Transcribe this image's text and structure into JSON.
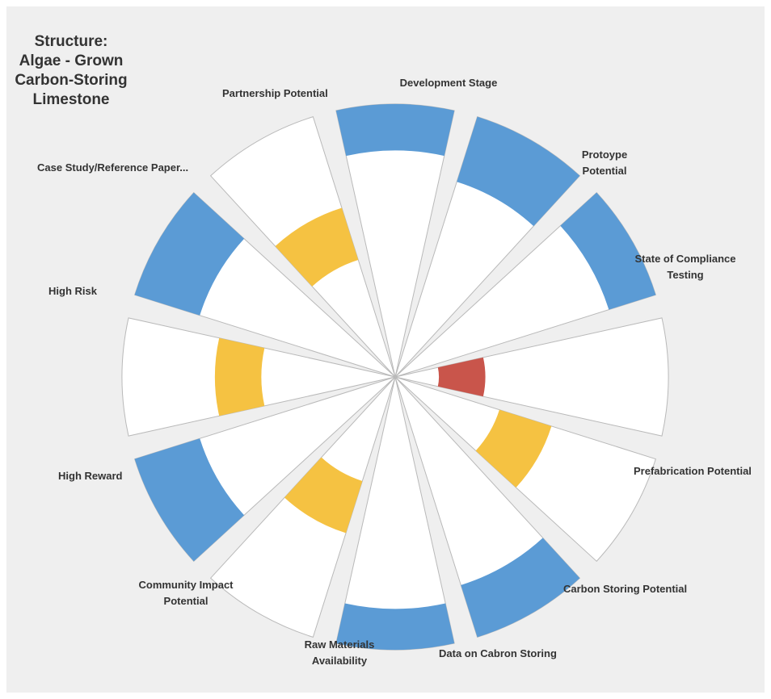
{
  "chart_data": {
    "type": "radial-bar",
    "title": "Structure:\nAlgae - Grown\nCarbon-Storing\nLimestone",
    "scale_max": 1.0,
    "colors": {
      "high": "#5b9bd5",
      "medium": "#f5c242",
      "low": "#c9554b",
      "sector": "#ffffff",
      "sector_border": "#b9b9b9",
      "background": "#efefef"
    },
    "categories": [
      {
        "label": "Development Stage",
        "sector_extent": 1.0,
        "band_inner": 0.83,
        "band_outer": 1.0,
        "level": "high"
      },
      {
        "label": "Protoype\nPotential",
        "sector_extent": 1.0,
        "band_inner": 0.75,
        "band_outer": 1.0,
        "level": "high"
      },
      {
        "label": "State of Compliance\nTesting",
        "sector_extent": 1.0,
        "band_inner": 0.82,
        "band_outer": 1.0,
        "level": "high"
      },
      {
        "label": "Prefabrication Potential",
        "sector_extent": 1.0,
        "band_inner": 0.16,
        "band_outer": 0.33,
        "level": "low"
      },
      {
        "label": "Carbon Storing Potential",
        "sector_extent": 1.0,
        "band_inner": 0.4,
        "band_outer": 0.6,
        "level": "medium"
      },
      {
        "label": "Data on Cabron Storing",
        "sector_extent": 1.0,
        "band_inner": 0.8,
        "band_outer": 1.0,
        "level": "high"
      },
      {
        "label": "Raw Materials\nAvailability",
        "sector_extent": 1.0,
        "band_inner": 0.85,
        "band_outer": 1.0,
        "level": "high"
      },
      {
        "label": "Community Impact\nPotential",
        "sector_extent": 1.0,
        "band_inner": 0.4,
        "band_outer": 0.6,
        "level": "medium"
      },
      {
        "label": "High Reward",
        "sector_extent": 1.0,
        "band_inner": 0.75,
        "band_outer": 1.0,
        "level": "high"
      },
      {
        "label": "High Risk",
        "sector_extent": 1.0,
        "band_inner": 0.49,
        "band_outer": 0.66,
        "level": "medium"
      },
      {
        "label": "Case Study/Reference Paper...",
        "sector_extent": 1.0,
        "band_inner": 0.75,
        "band_outer": 1.0,
        "level": "high"
      },
      {
        "label": "Partnership Potential",
        "sector_extent": 1.0,
        "band_inner": 0.45,
        "band_outer": 0.65,
        "level": "medium"
      }
    ]
  }
}
